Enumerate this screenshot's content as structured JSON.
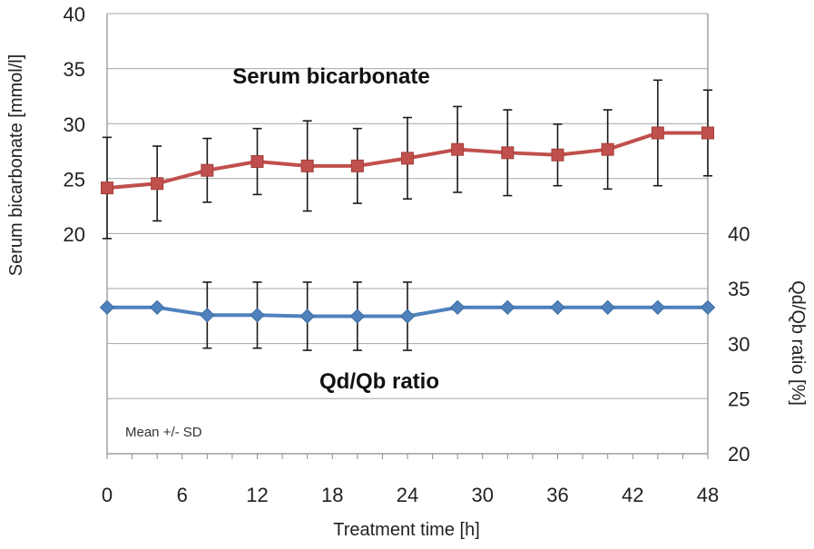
{
  "chart_data": {
    "type": "line",
    "xlabel": "Treatment time [h]",
    "ylabel_left": "Serum bicarbonate [mmol/l]",
    "ylabel_right": "Qd/Qb ratio [%]",
    "x_ticks": [
      0,
      6,
      12,
      18,
      24,
      30,
      36,
      42,
      48
    ],
    "x_range": [
      0,
      48
    ],
    "left_axis_ticks": [
      20,
      25,
      30,
      35,
      40
    ],
    "right_axis_ticks": [
      20,
      25,
      30,
      35,
      40
    ],
    "grid": true,
    "annotations": {
      "bicarbonate_label": "Serum bicarbonate",
      "ratio_label": "Qd/Qb ratio",
      "stat_note": "Mean +/- SD"
    },
    "series": [
      {
        "axis": "left",
        "color": "#c0504d",
        "marker": "square",
        "x": [
          0,
          4,
          8,
          12,
          16,
          20,
          24,
          28,
          32,
          36,
          40,
          44,
          48
        ],
        "y": [
          24.2,
          24.6,
          25.8,
          26.6,
          26.2,
          26.2,
          26.9,
          27.7,
          27.4,
          27.2,
          27.7,
          29.2,
          29.2
        ],
        "error": [
          4.6,
          3.4,
          2.9,
          3.0,
          4.1,
          3.4,
          3.7,
          3.9,
          3.9,
          2.8,
          3.6,
          4.8,
          3.9
        ]
      },
      {
        "axis": "right",
        "color": "#4f81bd",
        "marker": "diamond",
        "x": [
          0,
          4,
          8,
          12,
          16,
          20,
          24,
          28,
          32,
          36,
          40,
          44,
          48
        ],
        "y": [
          33.3,
          33.3,
          32.6,
          32.6,
          32.5,
          32.5,
          32.5,
          33.3,
          33.3,
          33.3,
          33.3,
          33.3,
          33.3
        ],
        "error": [
          0,
          0,
          3.0,
          3.0,
          3.1,
          3.1,
          3.1,
          0,
          0,
          0,
          0,
          0,
          0
        ]
      }
    ]
  }
}
